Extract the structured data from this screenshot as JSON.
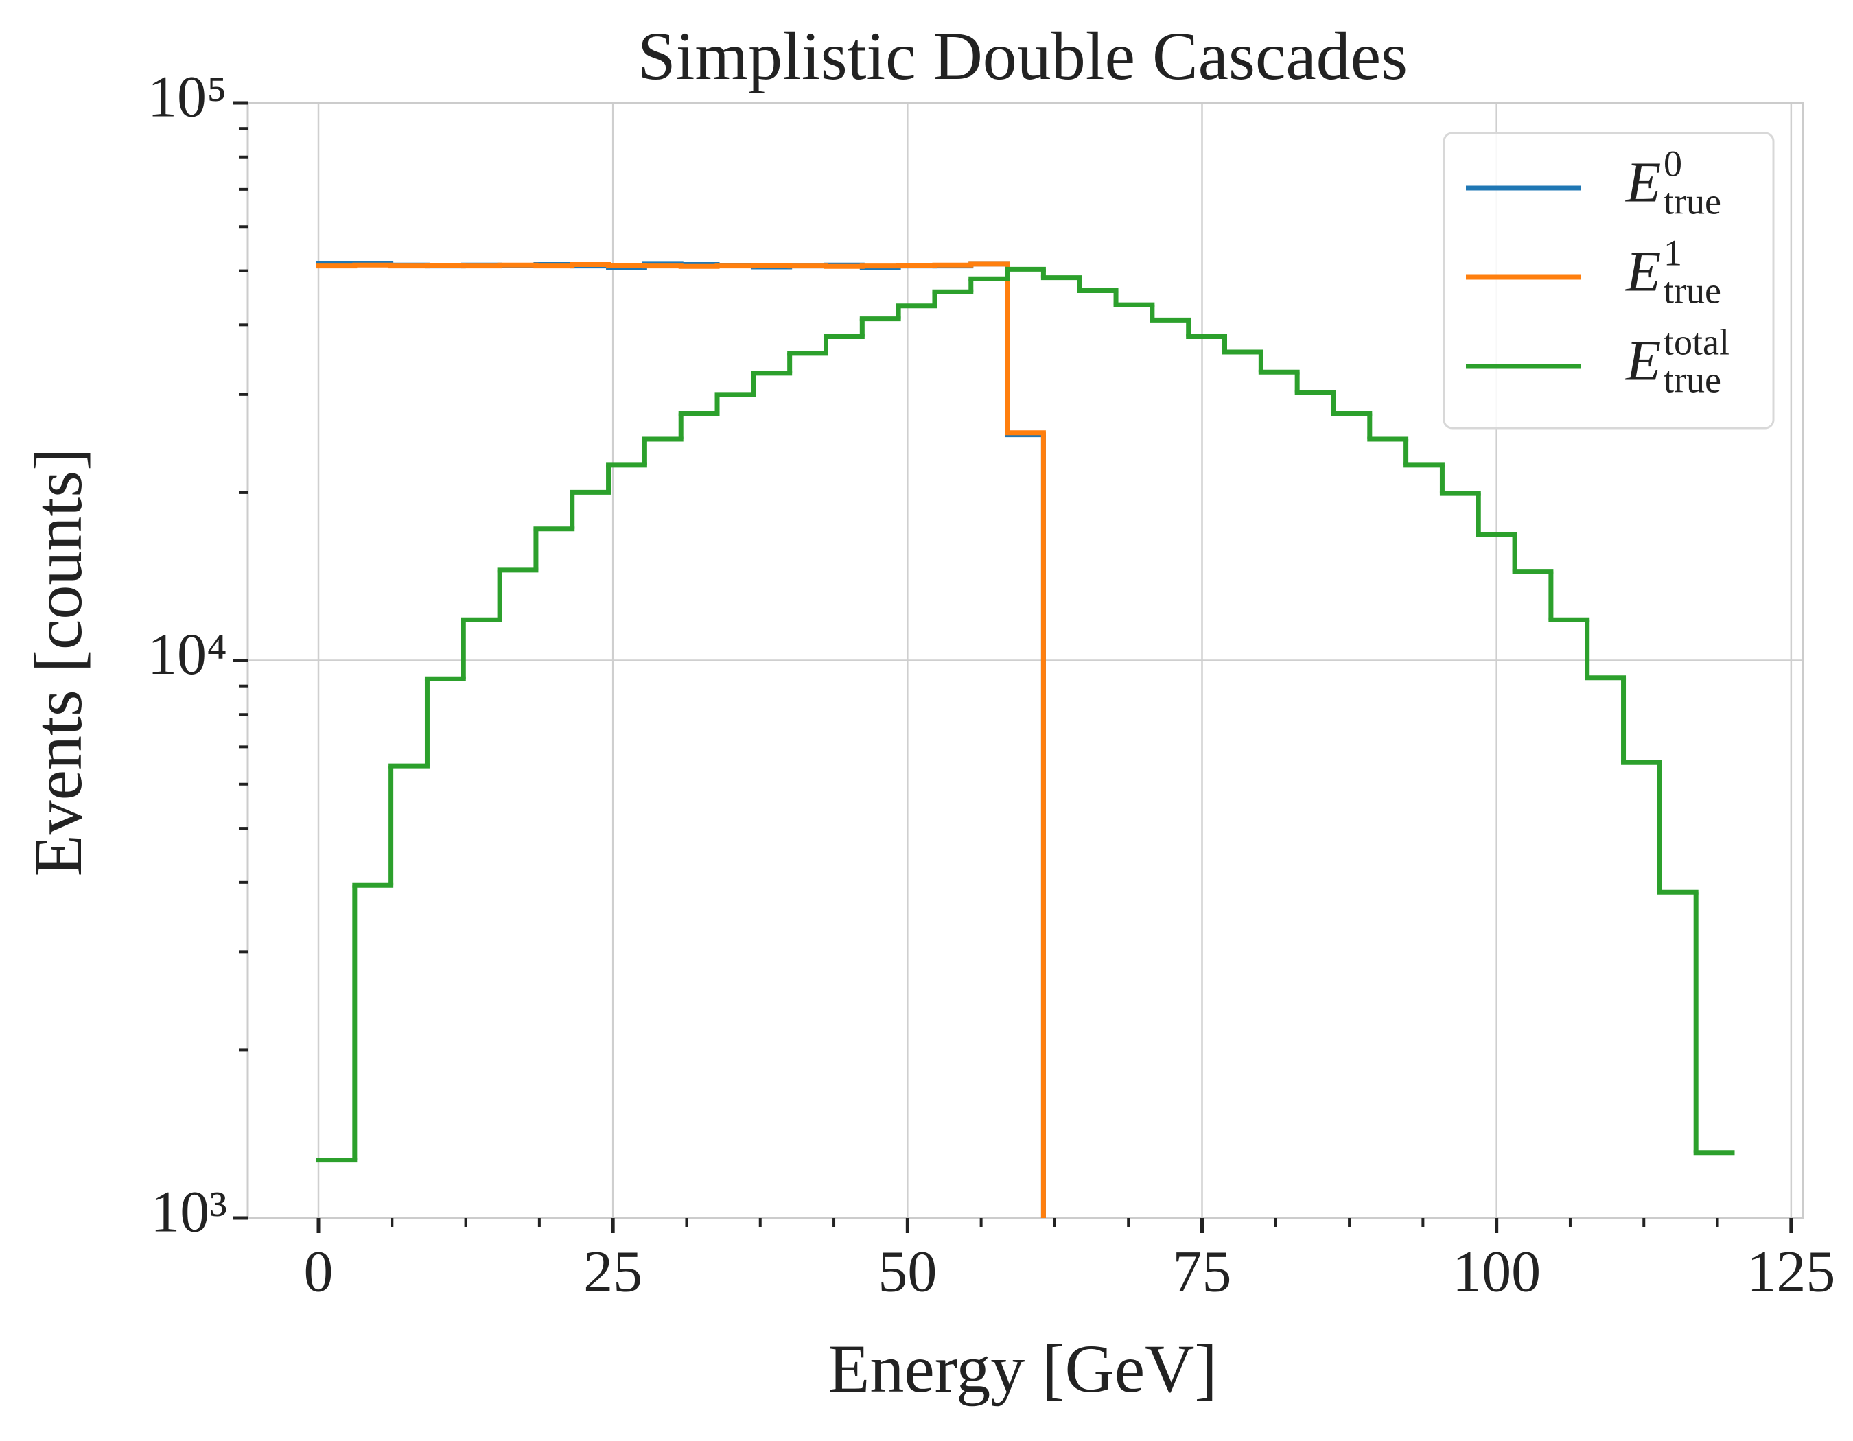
{
  "chart_data": {
    "type": "step-histogram",
    "title": "Simplistic Double Cascades",
    "xlabel": "Energy [GeV]",
    "ylabel": "Events [counts]",
    "bins": [
      0,
      3.077,
      6.154,
      9.231,
      12.308,
      15.385,
      18.462,
      21.538,
      24.615,
      27.692,
      30.769,
      33.846,
      36.923,
      40,
      43.077,
      46.154,
      49.231,
      52.308,
      55.385,
      58.462,
      61.538,
      64.615,
      67.692,
      70.769,
      73.846,
      76.923,
      80,
      83.077,
      86.154,
      89.231,
      92.308,
      95.385,
      98.462,
      101.538,
      104.615,
      107.692,
      110.769,
      113.846,
      116.923,
      120
    ],
    "series": [
      {
        "name": "E",
        "sup": "0",
        "sub": "true",
        "color": "#1f77b4",
        "values": [
          51500,
          51500,
          51200,
          51000,
          51200,
          51100,
          51300,
          51000,
          50600,
          51400,
          51300,
          51100,
          50800,
          51000,
          51200,
          50600,
          51000,
          51000,
          51400,
          25400,
          0,
          0,
          0,
          0,
          0,
          0,
          0,
          0,
          0,
          0,
          0,
          0,
          0,
          0,
          0,
          0,
          0,
          0,
          0
        ]
      },
      {
        "name": "E",
        "sup": "1",
        "sub": "true",
        "color": "#ff7f0e",
        "values": [
          51000,
          51200,
          51000,
          51100,
          51000,
          51200,
          51000,
          51300,
          51100,
          51000,
          50900,
          51000,
          51100,
          51000,
          50900,
          51000,
          51100,
          51200,
          51400,
          25600,
          0,
          0,
          0,
          0,
          0,
          0,
          0,
          0,
          0,
          0,
          0,
          0,
          0,
          0,
          0,
          0,
          0,
          0,
          0
        ]
      },
      {
        "name": "E",
        "sup": "total",
        "sub": "true",
        "color": "#2ca02c",
        "values": [
          1270,
          3950,
          6470,
          9270,
          11830,
          14520,
          17220,
          20030,
          22400,
          24940,
          27740,
          30000,
          32750,
          35560,
          38100,
          41000,
          43250,
          45840,
          48370,
          50310,
          48600,
          46060,
          43450,
          40800,
          38100,
          35750,
          32900,
          30280,
          27740,
          24940,
          22400,
          19930,
          16800,
          14450,
          11830,
          9310,
          6560,
          3840,
          1310
        ]
      }
    ],
    "xlim": [
      -6,
      126
    ],
    "xticks": [
      0,
      25,
      50,
      75,
      100,
      125
    ],
    "xminorticks": [
      6.25,
      12.5,
      18.75,
      31.25,
      37.5,
      43.75,
      56.25,
      62.5,
      68.75,
      81.25,
      87.5,
      93.75,
      106.25,
      112.5,
      118.75
    ],
    "ylim": [
      1000,
      100000
    ],
    "yscale": "log",
    "yticks": [
      {
        "value": 1000,
        "label": "10³"
      },
      {
        "value": 10000,
        "label": "10⁴"
      },
      {
        "value": 100000,
        "label": "10⁵"
      }
    ],
    "yminorticks": [
      2000,
      3000,
      4000,
      5000,
      6000,
      7000,
      8000,
      9000,
      20000,
      30000,
      40000,
      50000,
      60000,
      70000,
      80000,
      90000
    ],
    "grid": true,
    "legend": "upper right"
  }
}
